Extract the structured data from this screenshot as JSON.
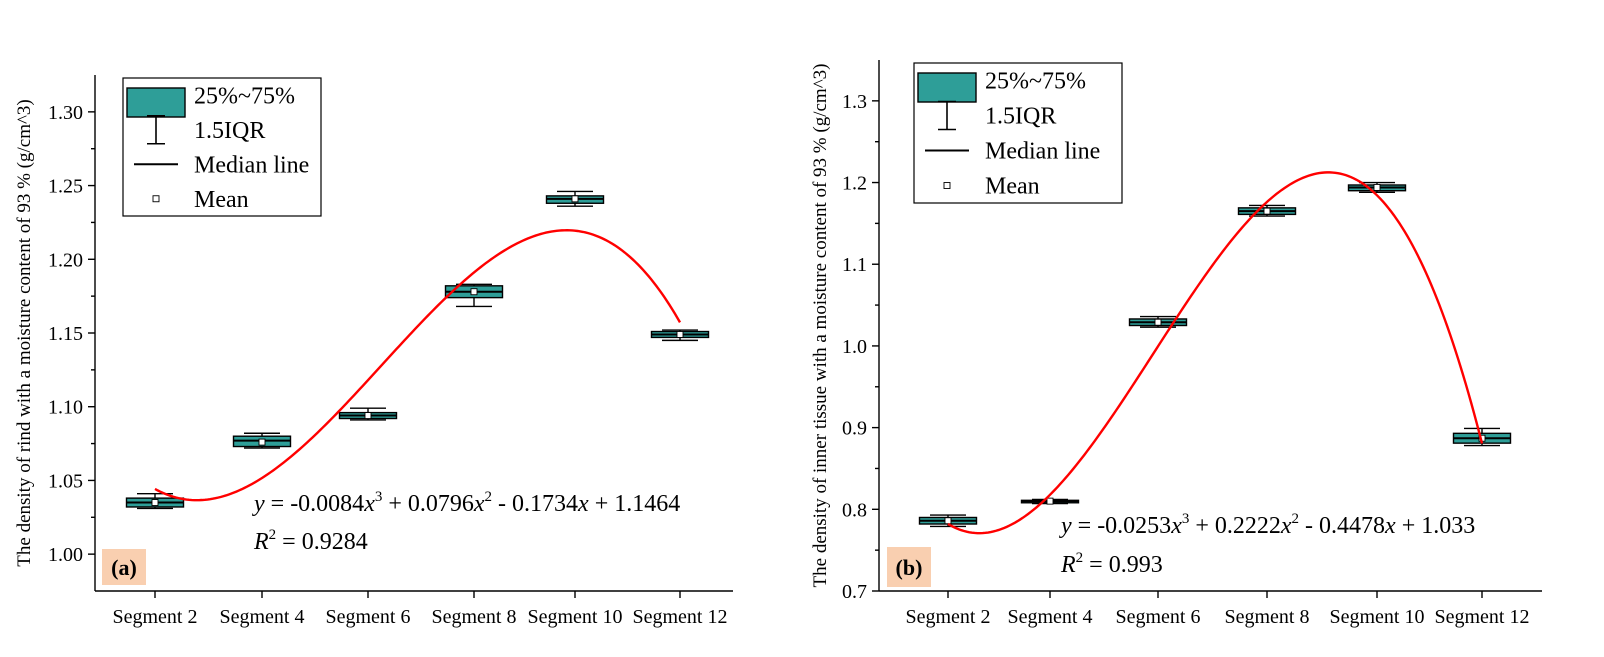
{
  "chart_data": [
    {
      "type": "box",
      "panel_label": "(a)",
      "ylabel": "The density of rind with a moisture content of 93 % (g/cm^3)",
      "xlabel": "",
      "categories": [
        "Segment 2",
        "Segment 4",
        "Segment 6",
        "Segment 8",
        "Segment 10",
        "Segment 12"
      ],
      "ylim": [
        0.975,
        1.325
      ],
      "yticks": [
        "1.00",
        "1.05",
        "1.10",
        "1.15",
        "1.20",
        "1.25",
        "1.30"
      ],
      "boxes": [
        {
          "category": "Segment 2",
          "whisker_low": 1.031,
          "q1": 1.032,
          "median": 1.035,
          "q3": 1.038,
          "whisker_high": 1.041,
          "mean": 1.035
        },
        {
          "category": "Segment 4",
          "whisker_low": 1.072,
          "q1": 1.073,
          "median": 1.077,
          "q3": 1.08,
          "whisker_high": 1.082,
          "mean": 1.076
        },
        {
          "category": "Segment 6",
          "whisker_low": 1.091,
          "q1": 1.092,
          "median": 1.094,
          "q3": 1.096,
          "whisker_high": 1.099,
          "mean": 1.094
        },
        {
          "category": "Segment 8",
          "whisker_low": 1.168,
          "q1": 1.174,
          "median": 1.178,
          "q3": 1.182,
          "whisker_high": 1.183,
          "mean": 1.178
        },
        {
          "category": "Segment 10",
          "whisker_low": 1.236,
          "q1": 1.238,
          "median": 1.241,
          "q3": 1.243,
          "whisker_high": 1.246,
          "mean": 1.241
        },
        {
          "category": "Segment 12",
          "whisker_low": 1.145,
          "q1": 1.147,
          "median": 1.149,
          "q3": 1.151,
          "whisker_high": 1.152,
          "mean": 1.149
        }
      ],
      "fit": {
        "type": "cubic",
        "coefficients": [
          -0.0084,
          0.0796,
          -0.1734,
          1.1464
        ],
        "x_range": [
          1,
          6
        ],
        "color": "#ff0000",
        "equation_parts": [
          "y",
          " = -0.0084",
          "x",
          "3",
          " + 0.0796",
          "x",
          "2",
          " - 0.1734",
          "x",
          " + 1.1464"
        ],
        "r2_parts": [
          "R",
          "2",
          " = 0.9284"
        ]
      },
      "legend": [
        "25%~75%",
        "1.5IQR",
        "Median line",
        "Mean"
      ]
    },
    {
      "type": "box",
      "panel_label": "(b)",
      "ylabel": "The density of inner tissue with a moisture content of 93 % (g/cm^3)",
      "xlabel": "",
      "categories": [
        "Segment 2",
        "Segment 4",
        "Segment 6",
        "Segment 8",
        "Segment 10",
        "Segment 12"
      ],
      "ylim": [
        0.7,
        1.35
      ],
      "yticks": [
        "0.7",
        "0.8",
        "0.9",
        "1.0",
        "1.1",
        "1.2",
        "1.3"
      ],
      "boxes": [
        {
          "category": "Segment 2",
          "whisker_low": 0.779,
          "q1": 0.782,
          "median": 0.786,
          "q3": 0.79,
          "whisker_high": 0.793,
          "mean": 0.786
        },
        {
          "category": "Segment 4",
          "whisker_low": 0.807,
          "q1": 0.808,
          "median": 0.81,
          "q3": 0.811,
          "whisker_high": 0.812,
          "mean": 0.81
        },
        {
          "category": "Segment 6",
          "whisker_low": 1.023,
          "q1": 1.025,
          "median": 1.029,
          "q3": 1.033,
          "whisker_high": 1.036,
          "mean": 1.029
        },
        {
          "category": "Segment 8",
          "whisker_low": 1.159,
          "q1": 1.161,
          "median": 1.165,
          "q3": 1.169,
          "whisker_high": 1.172,
          "mean": 1.165
        },
        {
          "category": "Segment 10",
          "whisker_low": 1.188,
          "q1": 1.19,
          "median": 1.194,
          "q3": 1.197,
          "whisker_high": 1.2,
          "mean": 1.194
        },
        {
          "category": "Segment 12",
          "whisker_low": 0.878,
          "q1": 0.881,
          "median": 0.887,
          "q3": 0.893,
          "whisker_high": 0.899,
          "mean": 0.887
        }
      ],
      "fit": {
        "type": "cubic",
        "coefficients": [
          -0.0253,
          0.2222,
          -0.4478,
          1.033
        ],
        "x_range": [
          1,
          6
        ],
        "color": "#ff0000",
        "equation_parts": [
          "y",
          " = -0.0253",
          "x",
          "3",
          " + 0.2222",
          "x",
          "2",
          " - 0.4478",
          "x",
          " + 1.033"
        ],
        "r2_parts": [
          "R",
          "2",
          " = 0.993"
        ]
      },
      "legend": [
        "25%~75%",
        "1.5IQR",
        "Median line",
        "Mean"
      ]
    }
  ],
  "colors": {
    "box_fill": "#2e9e98",
    "fit_line": "#ff0000",
    "panel_label_bg": "#f9cfb0"
  }
}
